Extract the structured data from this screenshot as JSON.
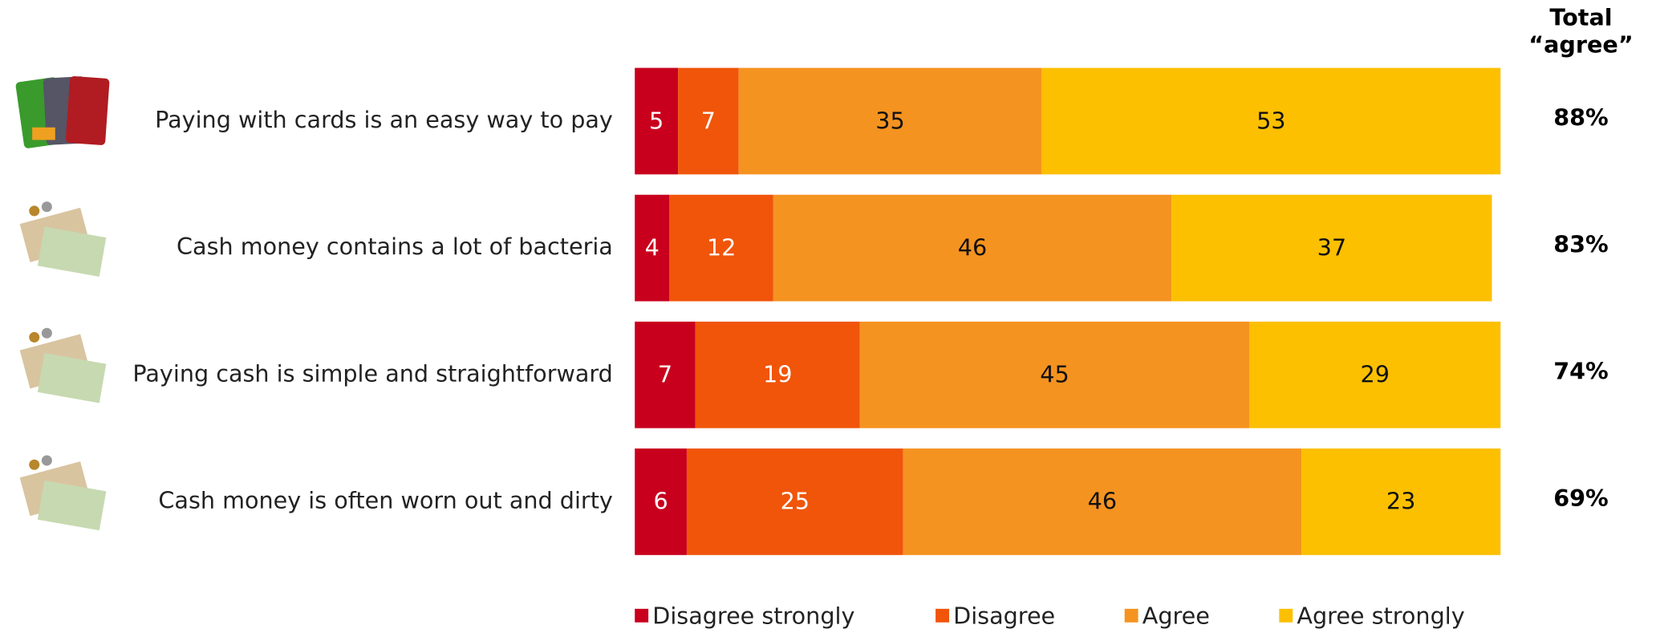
{
  "chart_data": {
    "type": "stacked-bar-horizontal",
    "categories": [
      "Paying with cards is an easy way to pay",
      "Cash money contains a lot of bacteria",
      "Paying cash is simple and straightforward",
      "Cash money is often worn out and dirty"
    ],
    "series": [
      {
        "name": "Disagree strongly",
        "color": "#c8001e",
        "label_color": "#ffffff",
        "values": [
          5,
          4,
          7,
          6
        ]
      },
      {
        "name": "Disagree",
        "color": "#f0550a",
        "label_color": "#ffffff",
        "values": [
          7,
          12,
          19,
          25
        ]
      },
      {
        "name": "Agree",
        "color": "#f59320",
        "label_color": "#111111",
        "values": [
          35,
          46,
          45,
          46
        ]
      },
      {
        "name": "Agree strongly",
        "color": "#fcc000",
        "label_color": "#111111",
        "values": [
          53,
          37,
          29,
          23
        ]
      }
    ],
    "xlim": [
      0,
      100
    ],
    "total_agree": {
      "header": [
        "Total",
        "“agree”"
      ],
      "values": [
        88,
        83,
        74,
        69
      ],
      "value_labels": [
        "88%",
        "83%",
        "74%",
        "69%"
      ]
    }
  }
}
